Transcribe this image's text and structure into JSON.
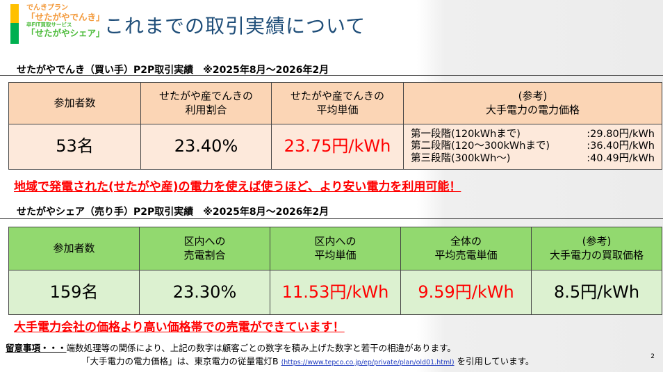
{
  "logo": {
    "line1": "でんきプラン",
    "line2": "「せたがやでんき」",
    "line3": "卒FIT買取サービス",
    "line4": "「せたがやシェア」",
    "colors": {
      "orange": "#ffc000",
      "green": "#00b050"
    }
  },
  "title": "これまでの取引実績について",
  "buyer": {
    "heading": "せたがやでんき（買い手）P2P取引実績　※2025年8月～2026年2月",
    "headers": [
      "参加者数",
      "せたがや産でんきの\n利用割合",
      "せたがや産でんきの\n平均単価",
      "(参考)\n大手電力の電力価格"
    ],
    "values": {
      "participants": "53名",
      "ratio": "23.40%",
      "avg_price": "23.75円/kWh"
    },
    "tiers": [
      {
        "label": "第一段階(120kWhまで)",
        "price": ":29.80円/kWh"
      },
      {
        "label": "第二段階(120～300kWhまで)",
        "price": ":36.40円/kWh"
      },
      {
        "label": "第三段階(300kWh～)",
        "price": ":40.49円/kWh"
      }
    ],
    "note": "地域で発電された(せたがや産)の電力を使えば使うほど、より安い電力を利用可能！"
  },
  "seller": {
    "heading": "せたがやシェア（売り手）P2P取引実績　※2025年8月～2026年2月",
    "headers": [
      "参加者数",
      "区内への\n売電割合",
      "区内への\n平均単価",
      "全体の\n平均売電単価",
      "(参考)\n大手電力の買取価格"
    ],
    "values": [
      "159名",
      "23.30%",
      "11.53円/kWh",
      "9.59円/kWh",
      "8.5円/kWh"
    ],
    "note": "大手電力会社の価格より高い価格帯での売電ができています！"
  },
  "footer": {
    "label": "留意事項・・・",
    "line1": "端数処理等の関係により、上記の数字は顧客ごとの数字を積み上げた数字と若干の相違があります。",
    "line2a": "「大手電力の電力価格」は、東京電力の従量電灯B ",
    "link": "(https://www.tepco.co.jp/ep/private/plan/old01.html)",
    "line2b": " を引用しています。"
  },
  "page_number": "2"
}
